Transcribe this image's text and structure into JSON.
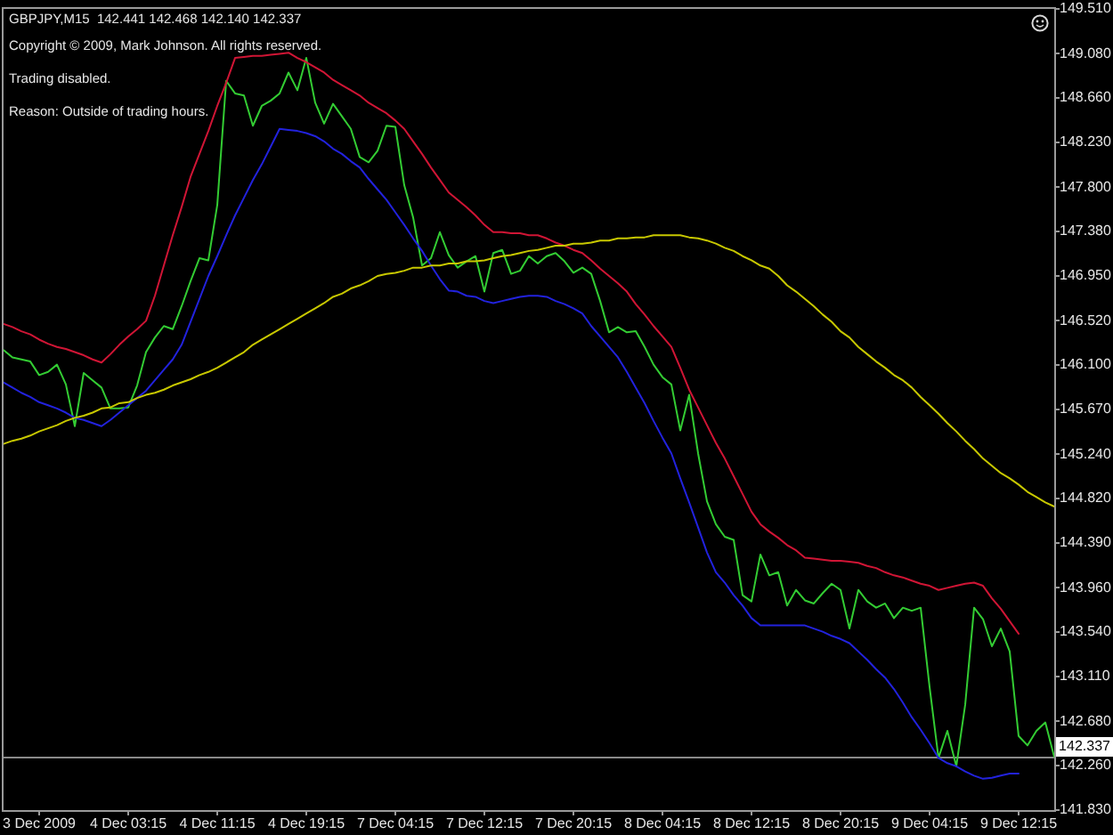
{
  "chart_data": {
    "type": "line",
    "title": "GBPJPY,M15  142.441 142.468 142.140 142.337",
    "annotations": [
      "Copyright © 2009, Mark Johnson. All rights reserved.",
      "Trading disabled.",
      "Reason: Outside of trading hours."
    ],
    "categories": [
      null,
      null,
      null,
      null,
      "3 Dec 2009",
      null,
      null,
      null,
      null,
      null,
      null,
      null,
      null,
      null,
      "4 Dec 03:15",
      null,
      null,
      null,
      null,
      null,
      null,
      null,
      null,
      null,
      "4 Dec 11:15",
      null,
      null,
      null,
      null,
      null,
      null,
      null,
      null,
      null,
      "4 Dec 19:15",
      null,
      null,
      null,
      null,
      null,
      null,
      null,
      null,
      null,
      "7 Dec 04:15",
      null,
      null,
      null,
      null,
      null,
      null,
      null,
      null,
      null,
      "7 Dec 12:15",
      null,
      null,
      null,
      null,
      null,
      null,
      null,
      null,
      null,
      "7 Dec 20:15",
      null,
      null,
      null,
      null,
      null,
      null,
      null,
      null,
      null,
      "8 Dec 04:15",
      null,
      null,
      null,
      null,
      null,
      null,
      null,
      null,
      null,
      "8 Dec 12:15",
      null,
      null,
      null,
      null,
      null,
      null,
      null,
      null,
      null,
      "8 Dec 20:15",
      null,
      null,
      null,
      null,
      null,
      null,
      null,
      null,
      null,
      "9 Dec 04:15",
      null,
      null,
      null,
      null,
      null,
      null,
      null,
      null,
      null,
      "9 Dec 12:15",
      null,
      null,
      null,
      null
    ],
    "series": [
      {
        "color": "#33cc33",
        "values": [
          146.24,
          146.17,
          146.15,
          146.13,
          146.0,
          146.03,
          146.1,
          145.91,
          145.51,
          146.02,
          145.95,
          145.88,
          145.68,
          145.68,
          145.69,
          145.9,
          146.22,
          146.36,
          146.47,
          146.44,
          146.66,
          146.9,
          147.12,
          147.1,
          147.63,
          148.82,
          148.7,
          148.68,
          148.39,
          148.58,
          148.63,
          148.7,
          148.9,
          148.73,
          149.04,
          148.61,
          148.41,
          148.6,
          148.48,
          148.36,
          148.09,
          148.04,
          148.15,
          148.39,
          148.38,
          147.82,
          147.51,
          147.05,
          147.12,
          147.37,
          147.15,
          147.03,
          147.09,
          147.14,
          146.8,
          147.17,
          147.2,
          146.97,
          147.0,
          147.14,
          147.07,
          147.14,
          147.17,
          147.09,
          146.98,
          147.03,
          146.97,
          146.71,
          146.41,
          146.46,
          146.41,
          146.42,
          146.27,
          146.1,
          145.98,
          145.91,
          145.47,
          145.81,
          145.25,
          144.79,
          144.57,
          144.45,
          144.42,
          143.89,
          143.83,
          144.28,
          144.08,
          144.11,
          143.79,
          143.94,
          143.84,
          143.81,
          143.91,
          144.0,
          143.94,
          143.57,
          143.94,
          143.83,
          143.77,
          143.81,
          143.67,
          143.77,
          143.74,
          143.77,
          143.01,
          142.33,
          142.59,
          142.25,
          142.84,
          143.77,
          143.66,
          143.4,
          143.57,
          143.35,
          142.54,
          142.45,
          142.59,
          142.67,
          142.34
        ]
      },
      {
        "color": "#d01535",
        "values": [
          146.49,
          146.46,
          146.42,
          146.39,
          146.34,
          146.3,
          146.27,
          146.25,
          146.22,
          146.19,
          146.15,
          146.12,
          146.2,
          146.29,
          146.37,
          146.44,
          146.52,
          146.76,
          147.05,
          147.34,
          147.61,
          147.9,
          148.12,
          148.34,
          148.58,
          148.8,
          149.04,
          149.05,
          149.06,
          149.06,
          149.07,
          149.08,
          149.09,
          149.04,
          149.0,
          148.95,
          148.9,
          148.83,
          148.78,
          148.73,
          148.68,
          148.61,
          148.56,
          148.51,
          148.44,
          148.36,
          148.24,
          148.12,
          147.99,
          147.87,
          147.75,
          147.68,
          147.61,
          147.53,
          147.44,
          147.37,
          147.37,
          147.36,
          147.36,
          147.34,
          147.34,
          147.31,
          147.27,
          147.24,
          147.2,
          147.17,
          147.1,
          147.02,
          146.95,
          146.88,
          146.8,
          146.68,
          146.58,
          146.47,
          146.37,
          146.27,
          146.07,
          145.86,
          145.69,
          145.52,
          145.35,
          145.2,
          145.03,
          144.86,
          144.69,
          144.57,
          144.5,
          144.44,
          144.37,
          144.32,
          144.25,
          144.24,
          144.23,
          144.22,
          144.22,
          144.21,
          144.2,
          144.17,
          144.15,
          144.11,
          144.08,
          144.06,
          144.03,
          144.0,
          143.98,
          143.94,
          143.96,
          143.98,
          144.0,
          144.01,
          143.98,
          143.86,
          143.76,
          143.64,
          143.52,
          null,
          null,
          null,
          null
        ]
      },
      {
        "color": "#2222dd",
        "values": [
          145.93,
          145.88,
          145.83,
          145.79,
          145.74,
          145.71,
          145.68,
          145.64,
          145.59,
          145.57,
          145.54,
          145.51,
          145.57,
          145.64,
          145.71,
          145.78,
          145.85,
          145.95,
          146.05,
          146.15,
          146.29,
          146.51,
          146.73,
          146.95,
          147.14,
          147.34,
          147.53,
          147.7,
          147.87,
          148.02,
          148.19,
          148.36,
          148.35,
          148.34,
          148.32,
          148.29,
          148.24,
          148.17,
          148.12,
          148.05,
          147.99,
          147.88,
          147.78,
          147.68,
          147.56,
          147.44,
          147.31,
          147.19,
          147.05,
          146.92,
          146.81,
          146.8,
          146.76,
          146.75,
          146.71,
          146.69,
          146.71,
          146.73,
          146.75,
          146.76,
          146.76,
          146.75,
          146.71,
          146.68,
          146.64,
          146.59,
          146.47,
          146.37,
          146.27,
          146.17,
          146.03,
          145.88,
          145.73,
          145.56,
          145.4,
          145.25,
          145.01,
          144.78,
          144.54,
          144.3,
          144.11,
          144.01,
          143.89,
          143.79,
          143.67,
          143.6,
          143.6,
          143.6,
          143.6,
          143.6,
          143.6,
          143.57,
          143.54,
          143.5,
          143.47,
          143.43,
          143.35,
          143.27,
          143.18,
          143.1,
          142.99,
          142.86,
          142.72,
          142.6,
          142.47,
          142.33,
          142.28,
          142.25,
          142.2,
          142.16,
          142.13,
          142.14,
          142.16,
          142.18,
          142.18,
          null,
          null,
          null,
          null
        ]
      },
      {
        "color": "#c8c800",
        "values": [
          145.34,
          145.37,
          145.39,
          145.42,
          145.46,
          145.49,
          145.52,
          145.56,
          145.59,
          145.61,
          145.64,
          145.68,
          145.69,
          145.73,
          145.74,
          145.78,
          145.81,
          145.83,
          145.86,
          145.9,
          145.93,
          145.96,
          146.0,
          146.03,
          146.07,
          146.12,
          146.17,
          146.22,
          146.29,
          146.34,
          146.39,
          146.44,
          146.49,
          146.54,
          146.59,
          146.64,
          146.69,
          146.75,
          146.78,
          146.83,
          146.86,
          146.9,
          146.95,
          146.97,
          146.98,
          147.0,
          147.03,
          147.03,
          147.05,
          147.05,
          147.07,
          147.07,
          147.09,
          147.09,
          147.1,
          147.12,
          147.14,
          147.15,
          147.17,
          147.19,
          147.2,
          147.22,
          147.24,
          147.24,
          147.26,
          147.26,
          147.27,
          147.29,
          147.29,
          147.31,
          147.31,
          147.32,
          147.32,
          147.34,
          147.34,
          147.34,
          147.34,
          147.32,
          147.31,
          147.29,
          147.26,
          147.22,
          147.19,
          147.14,
          147.1,
          147.05,
          147.02,
          146.95,
          146.86,
          146.8,
          146.73,
          146.66,
          146.58,
          146.51,
          146.42,
          146.36,
          146.27,
          146.2,
          146.13,
          146.07,
          146.0,
          145.95,
          145.88,
          145.79,
          145.71,
          145.63,
          145.54,
          145.46,
          145.37,
          145.29,
          145.2,
          145.13,
          145.06,
          145.01,
          144.95,
          144.88,
          144.83,
          144.78,
          144.74
        ]
      }
    ],
    "ylim": [
      141.83,
      149.51
    ],
    "yticks": [
      {
        "value": 141.83,
        "label": "141.830"
      },
      {
        "value": 142.26,
        "label": "142.260"
      },
      {
        "value": 142.68,
        "label": "142.680"
      },
      {
        "value": 143.11,
        "label": "143.110"
      },
      {
        "value": 143.54,
        "label": "143.540"
      },
      {
        "value": 143.96,
        "label": "143.960"
      },
      {
        "value": 144.39,
        "label": "144.390"
      },
      {
        "value": 144.82,
        "label": "144.820"
      },
      {
        "value": 145.24,
        "label": "145.240"
      },
      {
        "value": 145.67,
        "label": "145.670"
      },
      {
        "value": 146.1,
        "label": "146.100"
      },
      {
        "value": 146.52,
        "label": "146.520"
      },
      {
        "value": 146.95,
        "label": "146.950"
      },
      {
        "value": 147.38,
        "label": "147.380"
      },
      {
        "value": 147.8,
        "label": "147.800"
      },
      {
        "value": 148.23,
        "label": "148.230"
      },
      {
        "value": 148.66,
        "label": "148.660"
      },
      {
        "value": 149.08,
        "label": "149.080"
      },
      {
        "value": 149.51,
        "label": "149.510"
      }
    ],
    "ref_lines": [
      {
        "axis": "y",
        "value": 142.337,
        "label": "142.337",
        "color": "#8a8a8a"
      }
    ],
    "marker": "none"
  }
}
